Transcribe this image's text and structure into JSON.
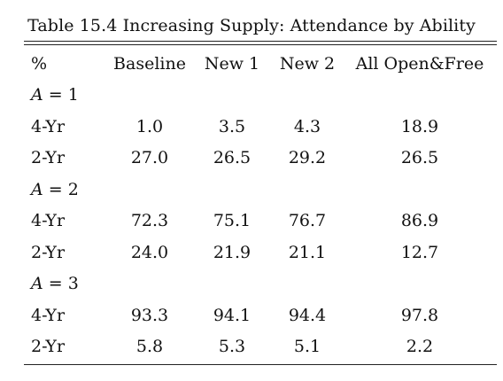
{
  "caption": "Table 15.4  Increasing Supply: Attendance by Ability",
  "header": {
    "unit": "%",
    "columns": [
      "Baseline",
      "New 1",
      "New 2",
      "All Open&Free"
    ]
  },
  "groups": [
    {
      "var": "A",
      "eq": " = 1",
      "rows": [
        {
          "label": "4-Yr",
          "values": [
            "1.0",
            "3.5",
            "4.3",
            "18.9"
          ]
        },
        {
          "label": "2-Yr",
          "values": [
            "27.0",
            "26.5",
            "29.2",
            "26.5"
          ]
        }
      ]
    },
    {
      "var": "A",
      "eq": " = 2",
      "rows": [
        {
          "label": "4-Yr",
          "values": [
            "72.3",
            "75.1",
            "76.7",
            "86.9"
          ]
        },
        {
          "label": "2-Yr",
          "values": [
            "24.0",
            "21.9",
            "21.1",
            "12.7"
          ]
        }
      ]
    },
    {
      "var": "A",
      "eq": " = 3",
      "rows": [
        {
          "label": "4-Yr",
          "values": [
            "93.3",
            "94.1",
            "94.4",
            "97.8"
          ]
        },
        {
          "label": "2-Yr",
          "values": [
            "5.8",
            "5.3",
            "5.1",
            "2.2"
          ]
        }
      ]
    }
  ]
}
